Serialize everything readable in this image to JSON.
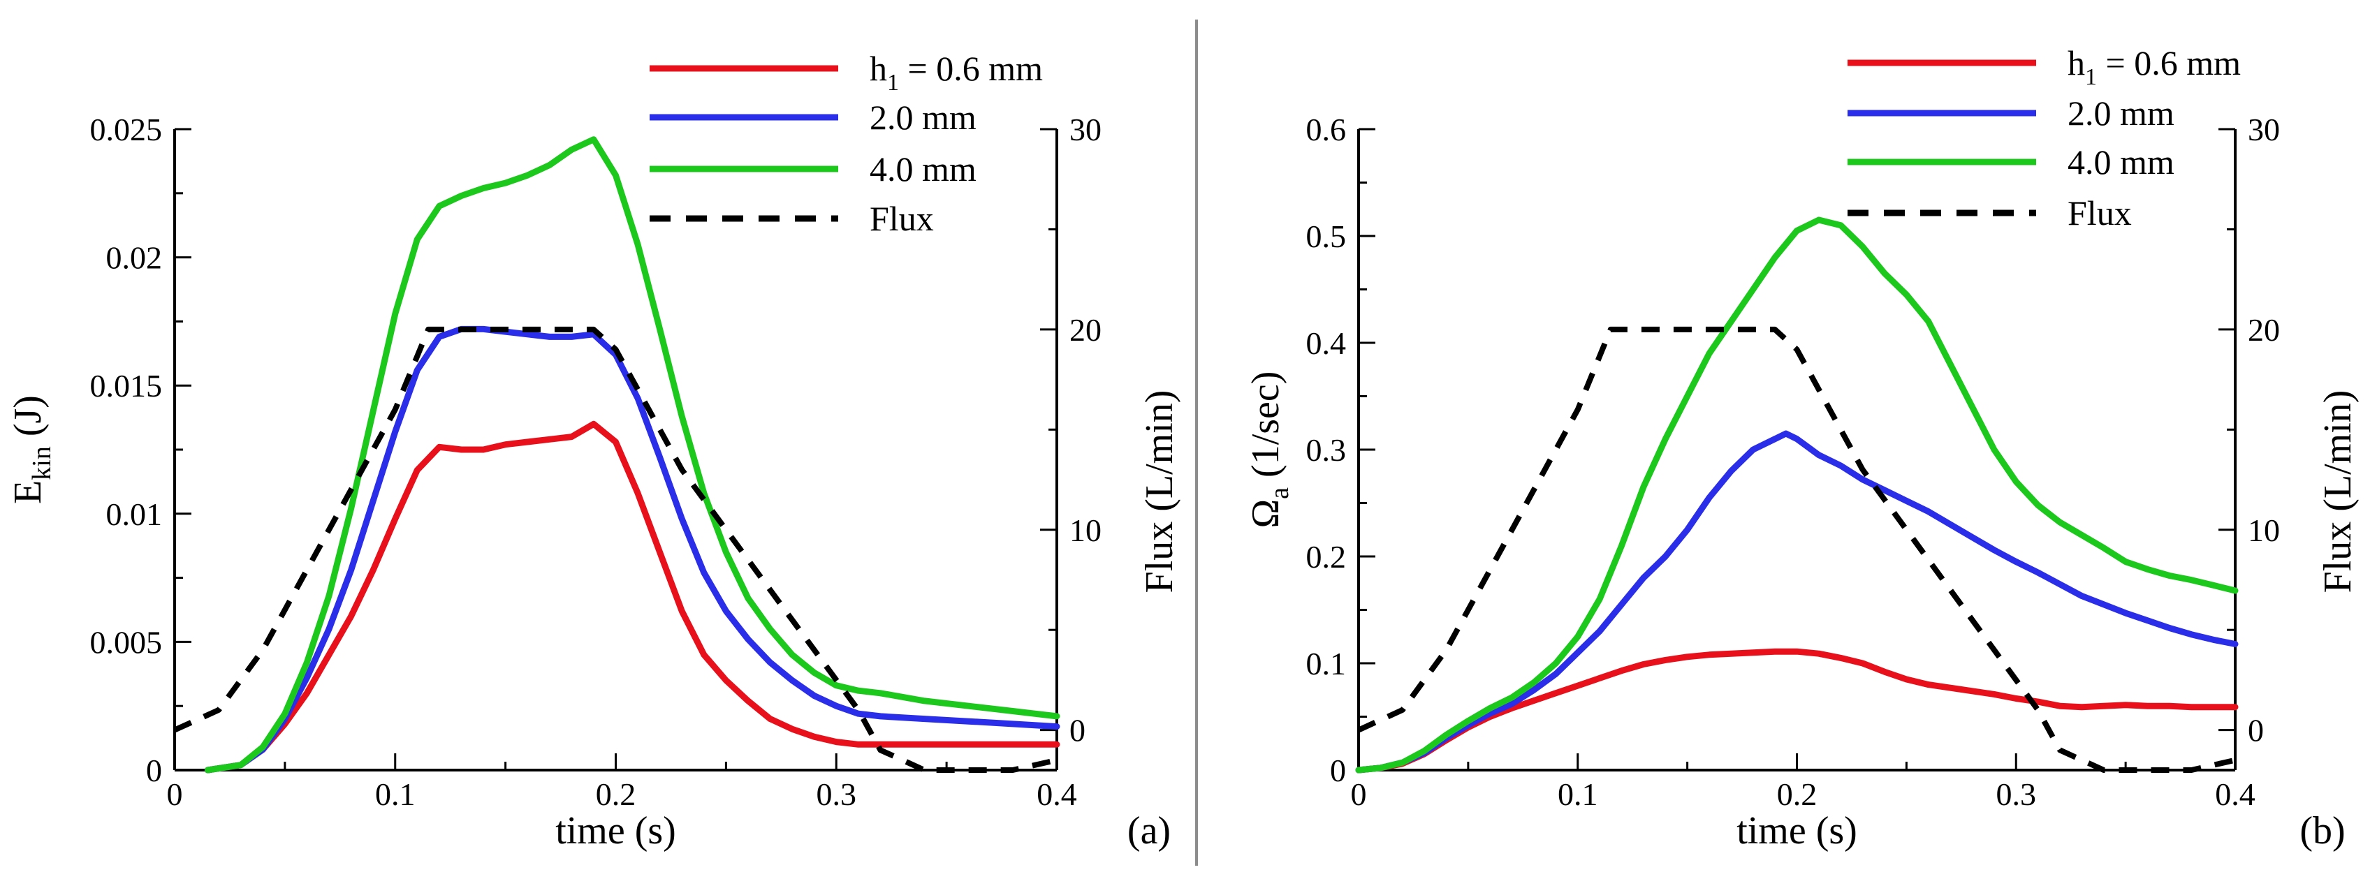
{
  "chart_data": [
    {
      "panel": "(a)",
      "type": "line",
      "xlabel": "time (s)",
      "ylabel_main": "E",
      "ylabel_sub": "kin",
      "ylabel_unit": " (J)",
      "y2label": "Flux (L/min)",
      "xlim": [
        0,
        0.4
      ],
      "ylim": [
        0,
        0.025
      ],
      "y2lim": [
        -2,
        30
      ],
      "xticks": [
        0,
        0.1,
        0.2,
        0.3,
        0.4
      ],
      "xtick_labels": [
        "0",
        "0.1",
        "0.2",
        "0.3",
        "0.4"
      ],
      "yticks": [
        0,
        0.005,
        0.01,
        0.015,
        0.02,
        0.025
      ],
      "ytick_labels": [
        "0",
        "0.005",
        "0.01",
        "0.015",
        "0.02",
        "0.025"
      ],
      "y2ticks": [
        0,
        10,
        20,
        30
      ],
      "y2tick_labels": [
        "0",
        "10",
        "20",
        "30"
      ],
      "legend": [
        {
          "main": "h",
          "sub": "1",
          "rest": " = 0.6 mm",
          "color": "#e8101a",
          "dashed": false
        },
        {
          "main": " 2.0 mm",
          "sub": "",
          "rest": "",
          "color": "#2a2ee8",
          "dashed": false
        },
        {
          "main": " 4.0 mm",
          "sub": "",
          "rest": "",
          "color": "#1cc81c",
          "dashed": false
        },
        {
          "main": "Flux",
          "sub": "",
          "rest": "",
          "color": "#000000",
          "dashed": true
        }
      ],
      "series": [
        {
          "name": "h1 = 0.6 mm",
          "color": "#e8101a",
          "axis": "left",
          "x": [
            0.015,
            0.03,
            0.04,
            0.05,
            0.06,
            0.07,
            0.08,
            0.09,
            0.1,
            0.11,
            0.12,
            0.13,
            0.14,
            0.15,
            0.16,
            0.17,
            0.18,
            0.19,
            0.2,
            0.21,
            0.22,
            0.23,
            0.24,
            0.25,
            0.26,
            0.27,
            0.28,
            0.29,
            0.3,
            0.31,
            0.32,
            0.33,
            0.34,
            0.36,
            0.38,
            0.4
          ],
          "y": [
            0,
            0.0002,
            0.0008,
            0.0018,
            0.003,
            0.0045,
            0.006,
            0.0078,
            0.0098,
            0.0117,
            0.0126,
            0.0125,
            0.0125,
            0.0127,
            0.0128,
            0.0129,
            0.013,
            0.0135,
            0.0128,
            0.0108,
            0.0085,
            0.0062,
            0.0045,
            0.0035,
            0.0027,
            0.002,
            0.0016,
            0.0013,
            0.0011,
            0.001,
            0.001,
            0.001,
            0.001,
            0.001,
            0.001,
            0.001
          ]
        },
        {
          "name": "2.0 mm",
          "color": "#2a2ee8",
          "axis": "left",
          "x": [
            0.015,
            0.03,
            0.04,
            0.05,
            0.06,
            0.07,
            0.08,
            0.09,
            0.1,
            0.11,
            0.12,
            0.13,
            0.14,
            0.15,
            0.16,
            0.17,
            0.18,
            0.19,
            0.2,
            0.21,
            0.22,
            0.23,
            0.24,
            0.25,
            0.26,
            0.27,
            0.28,
            0.29,
            0.3,
            0.31,
            0.32,
            0.34,
            0.36,
            0.38,
            0.4
          ],
          "y": [
            0,
            0.0002,
            0.0008,
            0.002,
            0.0036,
            0.0055,
            0.0078,
            0.0105,
            0.0132,
            0.0156,
            0.0169,
            0.0172,
            0.0172,
            0.0171,
            0.017,
            0.0169,
            0.0169,
            0.017,
            0.0162,
            0.0145,
            0.0122,
            0.0098,
            0.0077,
            0.0062,
            0.0051,
            0.0042,
            0.0035,
            0.0029,
            0.0025,
            0.0022,
            0.0021,
            0.002,
            0.0019,
            0.0018,
            0.0017
          ]
        },
        {
          "name": "4.0 mm",
          "color": "#1cc81c",
          "axis": "left",
          "x": [
            0.015,
            0.03,
            0.04,
            0.05,
            0.06,
            0.07,
            0.08,
            0.09,
            0.1,
            0.11,
            0.12,
            0.13,
            0.14,
            0.15,
            0.16,
            0.17,
            0.18,
            0.19,
            0.2,
            0.21,
            0.22,
            0.23,
            0.24,
            0.25,
            0.26,
            0.27,
            0.28,
            0.29,
            0.3,
            0.31,
            0.32,
            0.34,
            0.36,
            0.38,
            0.4
          ],
          "y": [
            0,
            0.0002,
            0.0009,
            0.0022,
            0.0042,
            0.0068,
            0.0102,
            0.014,
            0.0178,
            0.0207,
            0.022,
            0.0224,
            0.0227,
            0.0229,
            0.0232,
            0.0236,
            0.0242,
            0.0246,
            0.0232,
            0.0205,
            0.0172,
            0.0138,
            0.0108,
            0.0085,
            0.0067,
            0.0055,
            0.0045,
            0.0038,
            0.0033,
            0.0031,
            0.003,
            0.0027,
            0.0025,
            0.0023,
            0.0021
          ]
        },
        {
          "name": "Flux",
          "color": "#000000",
          "axis": "right",
          "dashed": true,
          "x": [
            0,
            0.02,
            0.04,
            0.06,
            0.08,
            0.1,
            0.115,
            0.13,
            0.15,
            0.17,
            0.19,
            0.2,
            0.21,
            0.23,
            0.25,
            0.27,
            0.29,
            0.31,
            0.32,
            0.34,
            0.36,
            0.38,
            0.4
          ],
          "y": [
            0,
            1,
            4,
            8,
            12,
            16,
            20,
            20,
            20,
            20,
            20,
            19,
            17,
            13,
            10,
            7,
            4,
            1,
            -1,
            -2,
            -2,
            -2,
            -1.5
          ]
        }
      ]
    },
    {
      "panel": "(b)",
      "type": "line",
      "xlabel": "time (s)",
      "ylabel_main": "Ω",
      "ylabel_sub": "a",
      "ylabel_unit": " (1/sec)",
      "y2label": "Flux (L/min)",
      "xlim": [
        0,
        0.4
      ],
      "ylim": [
        0,
        0.6
      ],
      "y2lim": [
        -2,
        30
      ],
      "xticks": [
        0,
        0.1,
        0.2,
        0.3,
        0.4
      ],
      "xtick_labels": [
        "0",
        "0.1",
        "0.2",
        "0.3",
        "0.4"
      ],
      "yticks": [
        0,
        0.1,
        0.2,
        0.3,
        0.4,
        0.5,
        0.6
      ],
      "ytick_labels": [
        "0",
        "0.1",
        "0.2",
        "0.3",
        "0.4",
        "0.5",
        "0.6"
      ],
      "y2ticks": [
        0,
        10,
        20,
        30
      ],
      "y2tick_labels": [
        "0",
        "10",
        "20",
        "30"
      ],
      "legend": [
        {
          "main": "h",
          "sub": "1",
          "rest": " = 0.6 mm",
          "color": "#e8101a",
          "dashed": false
        },
        {
          "main": " 2.0 mm",
          "sub": "",
          "rest": "",
          "color": "#2a2ee8",
          "dashed": false
        },
        {
          "main": " 4.0 mm",
          "sub": "",
          "rest": "",
          "color": "#1cc81c",
          "dashed": false
        },
        {
          "main": "Flux",
          "sub": "",
          "rest": "",
          "color": "#000000",
          "dashed": true
        }
      ],
      "series": [
        {
          "name": "h1 = 0.6 mm",
          "color": "#e8101a",
          "axis": "left",
          "x": [
            0,
            0.01,
            0.02,
            0.03,
            0.04,
            0.05,
            0.06,
            0.07,
            0.08,
            0.09,
            0.1,
            0.11,
            0.12,
            0.13,
            0.14,
            0.15,
            0.16,
            0.17,
            0.18,
            0.19,
            0.2,
            0.21,
            0.22,
            0.23,
            0.24,
            0.25,
            0.26,
            0.27,
            0.28,
            0.29,
            0.3,
            0.31,
            0.32,
            0.33,
            0.34,
            0.35,
            0.36,
            0.37,
            0.38,
            0.39,
            0.4
          ],
          "y": [
            0,
            0.002,
            0.006,
            0.015,
            0.028,
            0.04,
            0.05,
            0.058,
            0.065,
            0.072,
            0.079,
            0.086,
            0.093,
            0.099,
            0.103,
            0.106,
            0.108,
            0.109,
            0.11,
            0.111,
            0.111,
            0.109,
            0.105,
            0.1,
            0.092,
            0.085,
            0.08,
            0.077,
            0.074,
            0.071,
            0.067,
            0.064,
            0.06,
            0.059,
            0.06,
            0.061,
            0.06,
            0.06,
            0.059,
            0.059,
            0.059
          ]
        },
        {
          "name": "2.0 mm",
          "color": "#2a2ee8",
          "axis": "left",
          "x": [
            0,
            0.01,
            0.02,
            0.03,
            0.04,
            0.05,
            0.06,
            0.07,
            0.08,
            0.09,
            0.1,
            0.11,
            0.12,
            0.13,
            0.14,
            0.15,
            0.16,
            0.17,
            0.18,
            0.19,
            0.195,
            0.2,
            0.21,
            0.22,
            0.23,
            0.24,
            0.25,
            0.26,
            0.27,
            0.28,
            0.29,
            0.3,
            0.31,
            0.32,
            0.33,
            0.34,
            0.35,
            0.36,
            0.37,
            0.38,
            0.39,
            0.4
          ],
          "y": [
            0,
            0.002,
            0.007,
            0.016,
            0.03,
            0.042,
            0.053,
            0.062,
            0.075,
            0.09,
            0.11,
            0.13,
            0.155,
            0.18,
            0.2,
            0.225,
            0.255,
            0.28,
            0.3,
            0.31,
            0.315,
            0.31,
            0.295,
            0.285,
            0.272,
            0.262,
            0.252,
            0.242,
            0.23,
            0.218,
            0.206,
            0.195,
            0.185,
            0.174,
            0.163,
            0.155,
            0.147,
            0.14,
            0.133,
            0.127,
            0.122,
            0.118
          ]
        },
        {
          "name": "4.0 mm",
          "color": "#1cc81c",
          "axis": "left",
          "x": [
            0,
            0.01,
            0.02,
            0.03,
            0.04,
            0.05,
            0.06,
            0.07,
            0.08,
            0.09,
            0.1,
            0.11,
            0.12,
            0.13,
            0.14,
            0.15,
            0.16,
            0.17,
            0.18,
            0.19,
            0.2,
            0.21,
            0.22,
            0.23,
            0.24,
            0.25,
            0.26,
            0.27,
            0.28,
            0.29,
            0.3,
            0.31,
            0.32,
            0.33,
            0.34,
            0.35,
            0.36,
            0.37,
            0.38,
            0.39,
            0.4
          ],
          "y": [
            0,
            0.002,
            0.007,
            0.018,
            0.033,
            0.046,
            0.058,
            0.068,
            0.082,
            0.1,
            0.125,
            0.16,
            0.21,
            0.265,
            0.31,
            0.35,
            0.39,
            0.42,
            0.45,
            0.48,
            0.505,
            0.515,
            0.51,
            0.49,
            0.465,
            0.445,
            0.42,
            0.38,
            0.34,
            0.3,
            0.27,
            0.248,
            0.232,
            0.22,
            0.208,
            0.195,
            0.188,
            0.182,
            0.178,
            0.173,
            0.168
          ]
        },
        {
          "name": "Flux",
          "color": "#000000",
          "axis": "right",
          "dashed": true,
          "x": [
            0,
            0.02,
            0.04,
            0.06,
            0.08,
            0.1,
            0.115,
            0.13,
            0.15,
            0.17,
            0.19,
            0.2,
            0.21,
            0.23,
            0.25,
            0.27,
            0.29,
            0.31,
            0.32,
            0.34,
            0.36,
            0.38,
            0.4
          ],
          "y": [
            0,
            1,
            4,
            8,
            12,
            16,
            20,
            20,
            20,
            20,
            20,
            19,
            17,
            13,
            10,
            7,
            4,
            1,
            -1,
            -2,
            -2,
            -2,
            -1.5
          ]
        }
      ]
    }
  ]
}
